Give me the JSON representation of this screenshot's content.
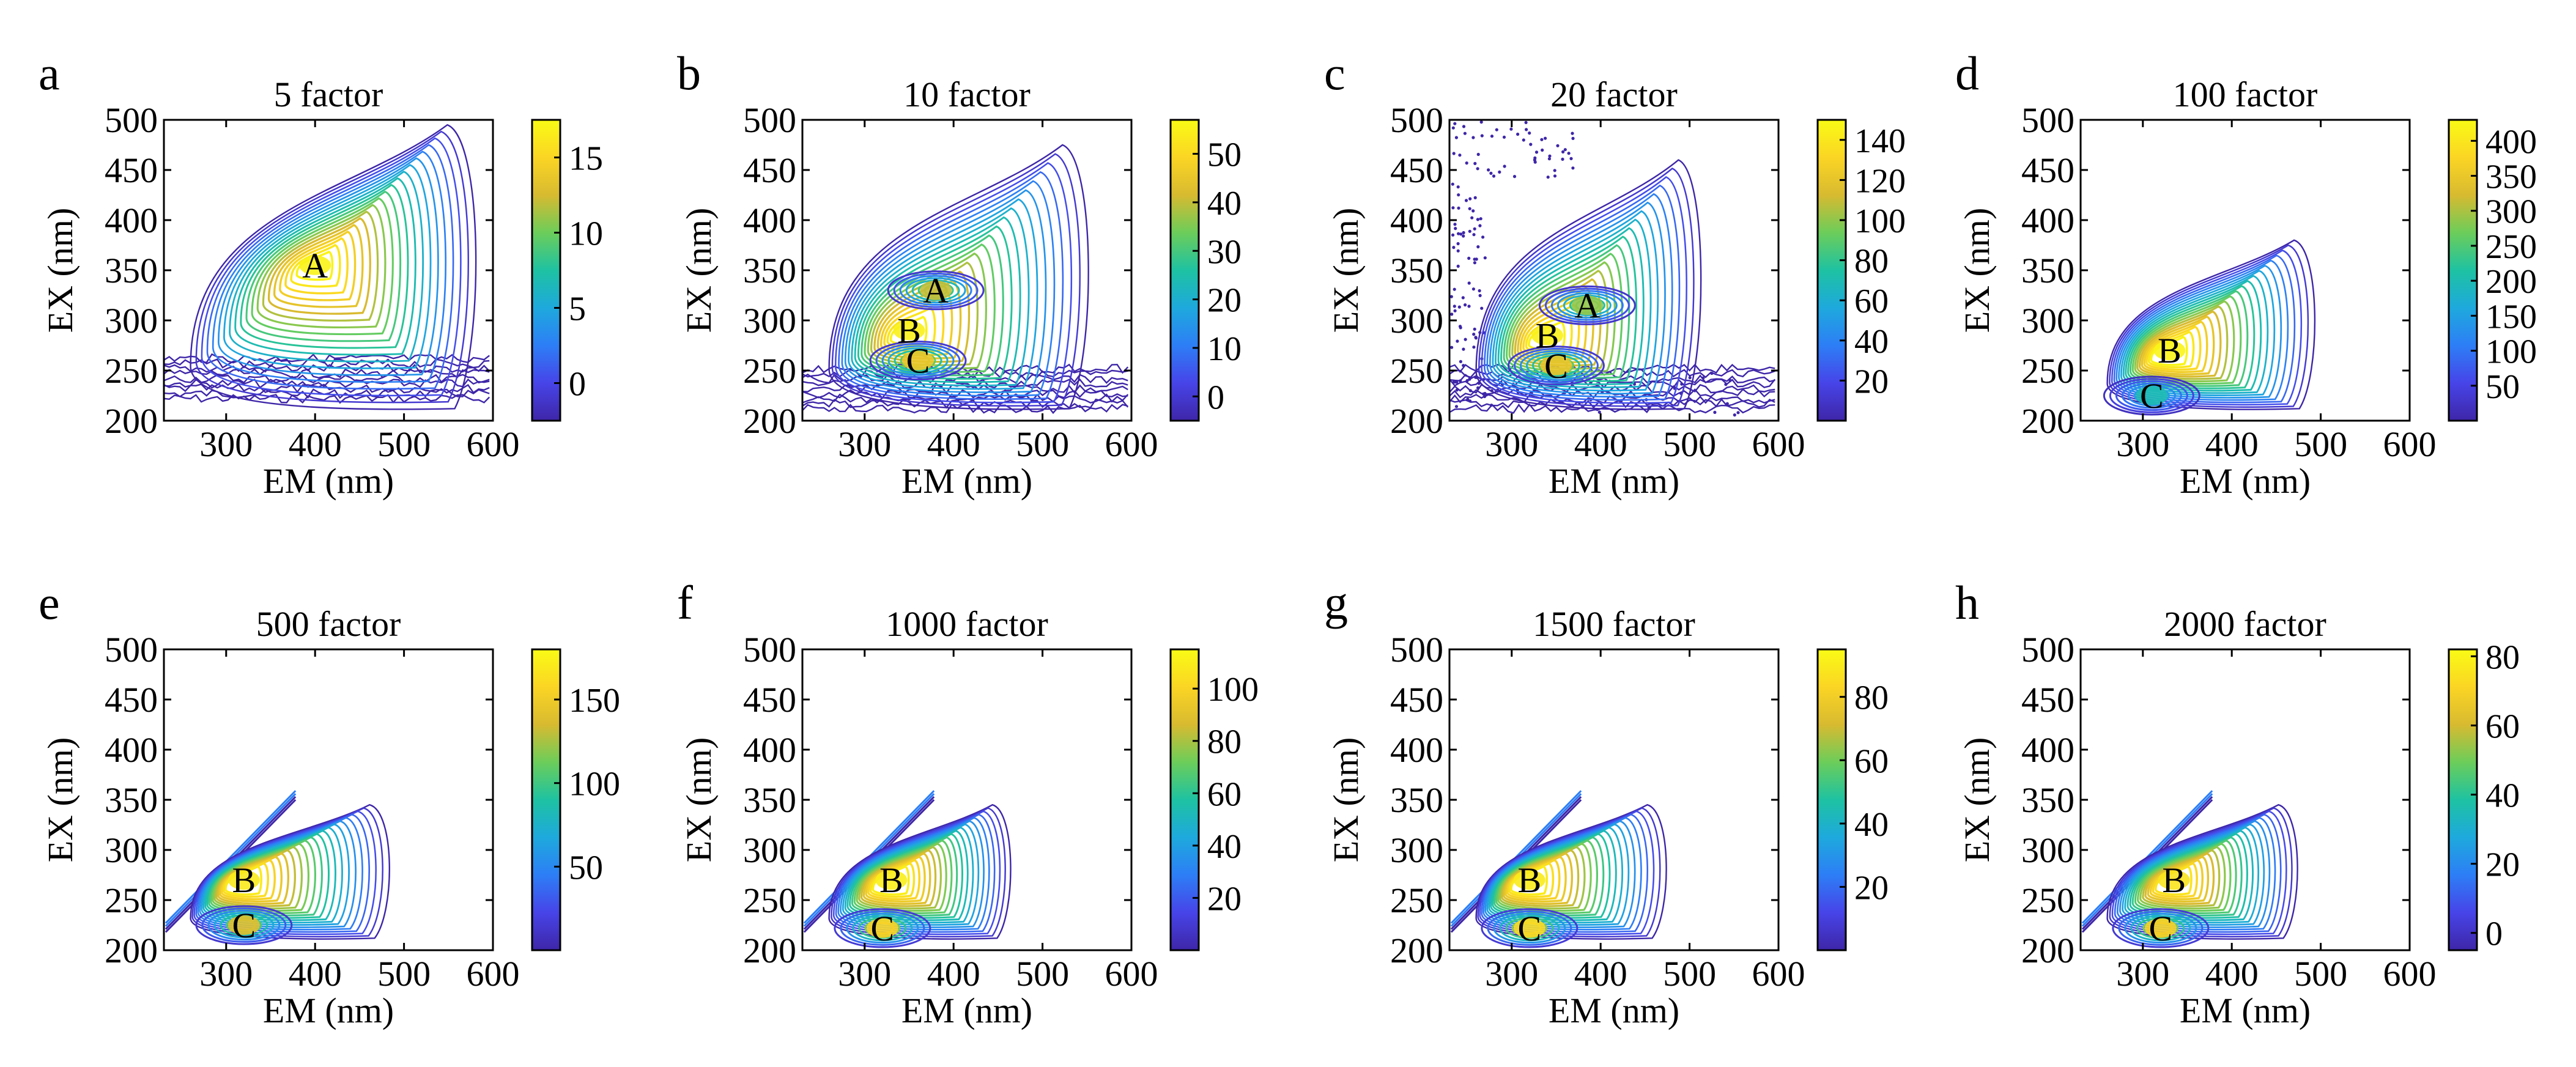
{
  "chart_data": [
    {
      "type": "contour",
      "letter": "a",
      "title": "5 factor",
      "xlabel": "EM (nm)",
      "ylabel": "EX (nm)",
      "xlim": [
        230,
        600
      ],
      "ylim": [
        200,
        500
      ],
      "xticks": [
        300,
        400,
        500,
        600
      ],
      "yticks": [
        200,
        250,
        300,
        350,
        400,
        450,
        500
      ],
      "colorbar": {
        "min": -2.5,
        "max": 17.5,
        "ticks": [
          0,
          5,
          10,
          15
        ]
      },
      "peaks": [
        {
          "label": "A",
          "em": 400,
          "ex": 355,
          "intensity": 17
        }
      ],
      "extent": {
        "em_max": 590,
        "ex_max": 495
      },
      "noise_band": true,
      "edge_noise": false,
      "rayleigh_line": false
    },
    {
      "type": "contour",
      "letter": "b",
      "title": "10 factor",
      "xlabel": "EM (nm)",
      "ylabel": "EX (nm)",
      "xlim": [
        230,
        600
      ],
      "ylim": [
        200,
        500
      ],
      "xticks": [
        300,
        400,
        500,
        600
      ],
      "yticks": [
        200,
        250,
        300,
        350,
        400,
        450,
        500
      ],
      "colorbar": {
        "min": -5,
        "max": 57,
        "ticks": [
          0,
          10,
          20,
          30,
          40,
          50
        ]
      },
      "peaks": [
        {
          "label": "A",
          "em": 380,
          "ex": 330,
          "intensity": 40
        },
        {
          "label": "B",
          "em": 350,
          "ex": 290,
          "intensity": 55
        },
        {
          "label": "C",
          "em": 360,
          "ex": 260,
          "intensity": 45
        }
      ],
      "extent": {
        "em_max": 560,
        "ex_max": 475
      },
      "noise_band": true,
      "edge_noise": false,
      "rayleigh_line": false
    },
    {
      "type": "contour",
      "letter": "c",
      "title": "20 factor",
      "xlabel": "EM (nm)",
      "ylabel": "EX (nm)",
      "xlim": [
        230,
        600
      ],
      "ylim": [
        200,
        500
      ],
      "xticks": [
        300,
        400,
        500,
        600
      ],
      "yticks": [
        200,
        250,
        300,
        350,
        400,
        450,
        500
      ],
      "colorbar": {
        "min": 0,
        "max": 150,
        "ticks": [
          20,
          40,
          60,
          80,
          100,
          120,
          140
        ]
      },
      "peaks": [
        {
          "label": "A",
          "em": 385,
          "ex": 315,
          "intensity": 100
        },
        {
          "label": "B",
          "em": 340,
          "ex": 285,
          "intensity": 145
        },
        {
          "label": "C",
          "em": 350,
          "ex": 255,
          "intensity": 120
        }
      ],
      "extent": {
        "em_max": 520,
        "ex_max": 460
      },
      "noise_band": true,
      "edge_noise": true,
      "rayleigh_line": false
    },
    {
      "type": "contour",
      "letter": "d",
      "title": "100 factor",
      "xlabel": "EM (nm)",
      "ylabel": "EX (nm)",
      "xlim": [
        230,
        600
      ],
      "ylim": [
        200,
        500
      ],
      "xticks": [
        300,
        400,
        500,
        600
      ],
      "yticks": [
        200,
        250,
        300,
        350,
        400,
        450,
        500
      ],
      "colorbar": {
        "min": 0,
        "max": 430,
        "ticks": [
          50,
          100,
          150,
          200,
          250,
          300,
          350,
          400
        ]
      },
      "peaks": [
        {
          "label": "B",
          "em": 330,
          "ex": 270,
          "intensity": 420
        },
        {
          "label": "C",
          "em": 310,
          "ex": 225,
          "intensity": 200
        }
      ],
      "extent": {
        "em_max": 500,
        "ex_max": 380
      },
      "noise_band": false,
      "edge_noise": false,
      "rayleigh_line": false
    },
    {
      "type": "contour",
      "letter": "e",
      "title": "500 factor",
      "xlabel": "EM (nm)",
      "ylabel": "EX (nm)",
      "xlim": [
        230,
        600
      ],
      "ylim": [
        200,
        500
      ],
      "xticks": [
        300,
        400,
        500,
        600
      ],
      "yticks": [
        200,
        250,
        300,
        350,
        400,
        450,
        500
      ],
      "colorbar": {
        "min": 0,
        "max": 180,
        "ticks": [
          50,
          100,
          150
        ]
      },
      "peaks": [
        {
          "label": "B",
          "em": 320,
          "ex": 270,
          "intensity": 170
        },
        {
          "label": "C",
          "em": 320,
          "ex": 225,
          "intensity": 140
        }
      ],
      "extent": {
        "em_max": 490,
        "ex_max": 345
      },
      "noise_band": false,
      "edge_noise": false,
      "rayleigh_line": true
    },
    {
      "type": "contour",
      "letter": "f",
      "title": "1000 factor",
      "xlabel": "EM (nm)",
      "ylabel": "EX (nm)",
      "xlim": [
        230,
        600
      ],
      "ylim": [
        200,
        500
      ],
      "xticks": [
        300,
        400,
        500,
        600
      ],
      "yticks": [
        200,
        250,
        300,
        350,
        400,
        450,
        500
      ],
      "colorbar": {
        "min": 0,
        "max": 115,
        "ticks": [
          20,
          40,
          60,
          80,
          100
        ]
      },
      "peaks": [
        {
          "label": "B",
          "em": 330,
          "ex": 270,
          "intensity": 110
        },
        {
          "label": "C",
          "em": 320,
          "ex": 222,
          "intensity": 100
        }
      ],
      "extent": {
        "em_max": 470,
        "ex_max": 345
      },
      "noise_band": false,
      "edge_noise": false,
      "rayleigh_line": true
    },
    {
      "type": "contour",
      "letter": "g",
      "title": "1500 factor",
      "xlabel": "EM (nm)",
      "ylabel": "EX (nm)",
      "xlim": [
        230,
        600
      ],
      "ylim": [
        200,
        500
      ],
      "xticks": [
        300,
        400,
        500,
        600
      ],
      "yticks": [
        200,
        250,
        300,
        350,
        400,
        450,
        500
      ],
      "colorbar": {
        "min": 0,
        "max": 95,
        "ticks": [
          20,
          40,
          60,
          80
        ]
      },
      "peaks": [
        {
          "label": "B",
          "em": 320,
          "ex": 270,
          "intensity": 90
        },
        {
          "label": "C",
          "em": 320,
          "ex": 222,
          "intensity": 85
        }
      ],
      "extent": {
        "em_max": 480,
        "ex_max": 345
      },
      "noise_band": false,
      "edge_noise": false,
      "rayleigh_line": true
    },
    {
      "type": "contour",
      "letter": "h",
      "title": "2000 factor",
      "xlabel": "EM (nm)",
      "ylabel": "EX (nm)",
      "xlim": [
        230,
        600
      ],
      "ylim": [
        200,
        500
      ],
      "xticks": [
        300,
        400,
        500,
        600
      ],
      "yticks": [
        200,
        250,
        300,
        350,
        400,
        450,
        500
      ],
      "colorbar": {
        "min": -5,
        "max": 82,
        "ticks": [
          0,
          20,
          40,
          60,
          80
        ]
      },
      "peaks": [
        {
          "label": "B",
          "em": 335,
          "ex": 270,
          "intensity": 75
        },
        {
          "label": "C",
          "em": 320,
          "ex": 222,
          "intensity": 70
        }
      ],
      "extent": {
        "em_max": 480,
        "ex_max": 345
      },
      "noise_band": false,
      "edge_noise": false,
      "rayleigh_line": true
    }
  ],
  "colormap": [
    "#3e26a8",
    "#4744e8",
    "#2d7ef6",
    "#1ea9dd",
    "#1ec2a2",
    "#6ccd5a",
    "#d8ba30",
    "#fbd524",
    "#f9fb15"
  ]
}
